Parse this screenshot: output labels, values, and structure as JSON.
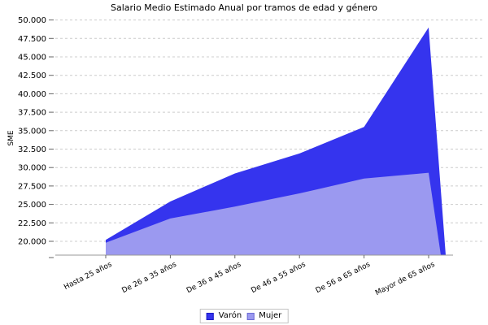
{
  "chart_data": {
    "type": "area",
    "title": "Salario Medio Estimado Anual por tramos de edad y género",
    "ylabel": "SME",
    "xlabel": "",
    "categories": [
      "Hasta 25 años",
      "De 26 a 35 años",
      "De 36 a 45 años",
      "De 46 a 55 años",
      "De 56 a 65 años",
      "Mayor de 65 años"
    ],
    "series": [
      {
        "name": "Varón",
        "color": "#3534ee",
        "swatch_border": "#1a19c4",
        "values": [
          20200,
          25400,
          29200,
          31900,
          35500,
          49000
        ]
      },
      {
        "name": "Mujer",
        "color": "#9b99f0",
        "swatch_border": "#6b6ad4",
        "values": [
          19800,
          23100,
          24700,
          26500,
          28500,
          29300
        ]
      }
    ],
    "y_tick_labels": [
      "50.000",
      "47.500",
      "45.000",
      "42.500",
      "40.000",
      "37.500",
      "35.000",
      "32.500",
      "30.000",
      "27.500",
      "25.000",
      "22.500",
      "20.000"
    ],
    "y_tick_values": [
      50000,
      47500,
      45000,
      42500,
      40000,
      37500,
      35000,
      32500,
      30000,
      27500,
      25000,
      22500,
      20000
    ],
    "ylim": [
      18100,
      50300
    ],
    "grid": "horizontal-dashed",
    "legend_position": "bottom",
    "colors": {
      "gridline": "#cccccc",
      "axis_line": "#999999",
      "tick": "#666666",
      "text": "#000000",
      "background": "#ffffff"
    }
  }
}
